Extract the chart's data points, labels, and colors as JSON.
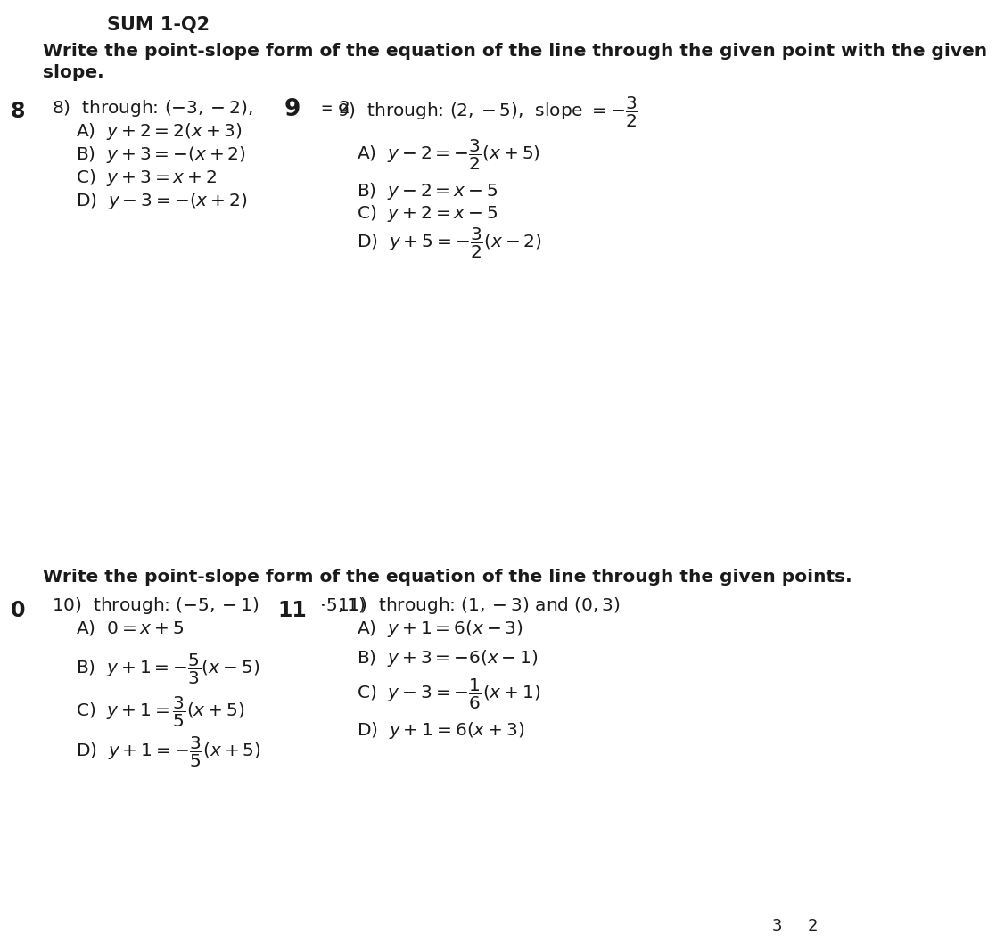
{
  "bg_color": "#ffffff",
  "section1_title_line1": "Write the point-slope form of the equation of the line through the given point with the given",
  "section1_title_line2": "slope.",
  "section2_title": "Write the point-slope form of the equation of the line through the given points.",
  "circle_border_color": "#2255cc",
  "circle_face_color": "#ffffff",
  "circle_text_color": "#1a1a1a",
  "body_color": "#1a1a1a",
  "bold_color": "#1a1a1a",
  "fs_body": 14.5,
  "fs_section": 14.5,
  "q8_header": "8)  through: $(-3, -2)$,  slope = 2",
  "q9_header_part1": "9)  through: $(2, -5)$,  slope $= -$",
  "q10_header": "10)  through: $(-5, -1)$ and $(-5, 1)$",
  "q11_header": "11)  through: $(1, -3)$ and $(0, 3)$"
}
